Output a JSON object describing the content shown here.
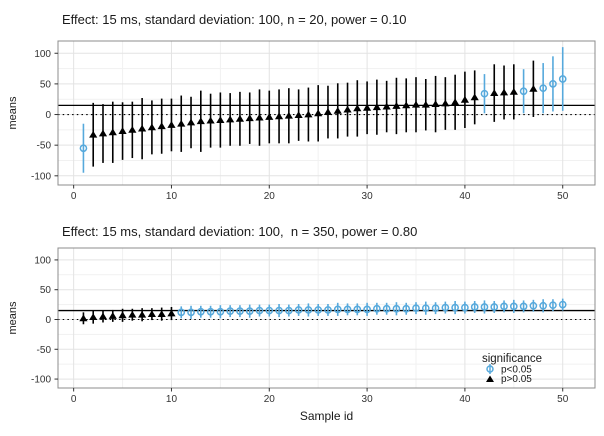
{
  "colors": {
    "significant": "#56A9DC",
    "nonsignificant": "#000000",
    "grid_major": "#e3e3e3",
    "grid_minor": "#f1f1f1",
    "panel_border": "#8c8c8c",
    "tick_text": "#333333",
    "title_text": "#1a1a1a",
    "reference_line": "#000000"
  },
  "x_axis_label": "Sample id",
  "legend": {
    "title": "significance",
    "items": [
      {
        "label": "p<0.05",
        "marker": "circle-errorbar-icon",
        "color": "#56A9DC"
      },
      {
        "label": "p>0.05",
        "marker": "triangle-icon",
        "color": "#000000"
      }
    ]
  },
  "chart_data": [
    {
      "type": "scatter",
      "subtype": "means-with-95CI-errorbars-sorted-ascending",
      "title": "Effect: 15 ms, standard deviation: 100, n = 20, power = 0.10",
      "xlabel": "",
      "ylabel": "means",
      "xlim": [
        -1.6,
        53.3
      ],
      "ylim": [
        -115,
        120
      ],
      "x_ticks": [
        0,
        10,
        20,
        30,
        40,
        50
      ],
      "y_ticks": [
        -100,
        -50,
        0,
        50,
        100
      ],
      "grid": true,
      "reference_lines": [
        {
          "y": 15,
          "style": "solid",
          "meaning": "true effect"
        },
        {
          "y": 0,
          "style": "dotted",
          "meaning": "null"
        }
      ],
      "point_format": [
        "sample_id",
        "mean",
        "ci_low",
        "ci_high",
        "significant"
      ],
      "points": [
        [
          1,
          -55,
          -95,
          -15,
          1
        ],
        [
          2,
          -33,
          -85,
          19,
          0
        ],
        [
          3,
          -31,
          -79,
          17,
          0
        ],
        [
          4,
          -29,
          -79,
          21,
          0
        ],
        [
          5,
          -27,
          -74,
          20,
          0
        ],
        [
          6,
          -25,
          -71,
          21,
          0
        ],
        [
          7,
          -23,
          -73,
          27,
          0
        ],
        [
          8,
          -21,
          -65,
          23,
          0
        ],
        [
          9,
          -19,
          -64,
          26,
          0
        ],
        [
          10,
          -17,
          -60,
          26,
          0
        ],
        [
          11,
          -15,
          -61,
          31,
          0
        ],
        [
          12,
          -13,
          -55,
          29,
          0
        ],
        [
          13,
          -11,
          -61,
          39,
          0
        ],
        [
          14,
          -10,
          -54,
          34,
          0
        ],
        [
          15,
          -9,
          -54,
          36,
          0
        ],
        [
          16,
          -8,
          -51,
          35,
          0
        ],
        [
          17,
          -7,
          -51,
          37,
          0
        ],
        [
          18,
          -6,
          -48,
          36,
          0
        ],
        [
          19,
          -5,
          -51,
          41,
          0
        ],
        [
          20,
          -4,
          -47,
          39,
          0
        ],
        [
          21,
          -3,
          -47,
          41,
          0
        ],
        [
          22,
          -2,
          -47,
          43,
          0
        ],
        [
          23,
          -1,
          -43,
          41,
          0
        ],
        [
          24,
          0,
          -44,
          44,
          0
        ],
        [
          25,
          2,
          -44,
          48,
          0
        ],
        [
          26,
          4,
          -39,
          47,
          0
        ],
        [
          27,
          6,
          -39,
          51,
          0
        ],
        [
          28,
          8,
          -36,
          52,
          0
        ],
        [
          29,
          10,
          -36,
          56,
          0
        ],
        [
          30,
          11,
          -32,
          54,
          0
        ],
        [
          31,
          12,
          -33,
          57,
          0
        ],
        [
          32,
          13,
          -29,
          55,
          0
        ],
        [
          33,
          14,
          -32,
          60,
          0
        ],
        [
          34,
          15,
          -29,
          59,
          0
        ],
        [
          35,
          16,
          -29,
          61,
          0
        ],
        [
          36,
          16,
          -26,
          58,
          0
        ],
        [
          37,
          17,
          -29,
          63,
          0
        ],
        [
          38,
          18,
          -25,
          61,
          0
        ],
        [
          39,
          20,
          -25,
          65,
          0
        ],
        [
          40,
          24,
          -22,
          70,
          0
        ],
        [
          41,
          28,
          -16,
          72,
          0
        ],
        [
          42,
          34,
          2,
          66,
          1
        ],
        [
          43,
          35,
          -12,
          82,
          0
        ],
        [
          44,
          36,
          -8,
          80,
          0
        ],
        [
          45,
          37,
          -8,
          82,
          0
        ],
        [
          46,
          38,
          2,
          74,
          1
        ],
        [
          47,
          42,
          -4,
          88,
          0
        ],
        [
          48,
          43,
          2,
          84,
          1
        ],
        [
          49,
          50,
          5,
          95,
          1
        ],
        [
          50,
          58,
          6,
          110,
          1
        ]
      ]
    },
    {
      "type": "scatter",
      "subtype": "means-with-95CI-errorbars-sorted-ascending",
      "title": "Effect: 15 ms, standard deviation: 100,  n = 350, power = 0.80",
      "xlabel": "Sample id",
      "ylabel": "means",
      "xlim": [
        -1.6,
        53.3
      ],
      "ylim": [
        -115,
        120
      ],
      "x_ticks": [
        0,
        10,
        20,
        30,
        40,
        50
      ],
      "y_ticks": [
        -100,
        -50,
        0,
        50,
        100
      ],
      "grid": true,
      "legend_position": "inside-bottom-right",
      "reference_lines": [
        {
          "y": 15,
          "style": "solid",
          "meaning": "true effect"
        },
        {
          "y": 0,
          "style": "dotted",
          "meaning": "null"
        }
      ],
      "point_format": [
        "sample_id",
        "mean",
        "ci_low",
        "ci_high",
        "significant"
      ],
      "points": [
        [
          1,
          2,
          -8,
          12,
          0
        ],
        [
          2,
          4,
          -7,
          15,
          0
        ],
        [
          3,
          5,
          -5,
          15,
          0
        ],
        [
          4,
          6,
          -4,
          16,
          0
        ],
        [
          5,
          7,
          -4,
          18,
          0
        ],
        [
          6,
          8,
          -2,
          18,
          0
        ],
        [
          7,
          8,
          -3,
          19,
          0
        ],
        [
          8,
          9,
          -1,
          19,
          0
        ],
        [
          9,
          9,
          -2,
          20,
          0
        ],
        [
          10,
          10,
          -1,
          21,
          0
        ],
        [
          11,
          12,
          2,
          22,
          1
        ],
        [
          12,
          12,
          1,
          23,
          1
        ],
        [
          13,
          13,
          3,
          23,
          1
        ],
        [
          14,
          13,
          3,
          23,
          1
        ],
        [
          15,
          13,
          2,
          24,
          1
        ],
        [
          16,
          14,
          4,
          24,
          1
        ],
        [
          17,
          14,
          4,
          24,
          1
        ],
        [
          18,
          14,
          3,
          25,
          1
        ],
        [
          19,
          15,
          5,
          25,
          1
        ],
        [
          20,
          15,
          5,
          25,
          1
        ],
        [
          21,
          15,
          4,
          26,
          1
        ],
        [
          22,
          15,
          5,
          25,
          1
        ],
        [
          23,
          16,
          6,
          26,
          1
        ],
        [
          24,
          16,
          5,
          27,
          1
        ],
        [
          25,
          16,
          6,
          26,
          1
        ],
        [
          26,
          16,
          6,
          26,
          1
        ],
        [
          27,
          17,
          6,
          28,
          1
        ],
        [
          28,
          17,
          7,
          27,
          1
        ],
        [
          29,
          17,
          7,
          27,
          1
        ],
        [
          30,
          17,
          6,
          28,
          1
        ],
        [
          31,
          18,
          8,
          28,
          1
        ],
        [
          32,
          18,
          8,
          28,
          1
        ],
        [
          33,
          18,
          7,
          29,
          1
        ],
        [
          34,
          18,
          8,
          28,
          1
        ],
        [
          35,
          19,
          9,
          29,
          1
        ],
        [
          36,
          19,
          8,
          30,
          1
        ],
        [
          37,
          19,
          9,
          29,
          1
        ],
        [
          38,
          20,
          10,
          30,
          1
        ],
        [
          39,
          20,
          9,
          31,
          1
        ],
        [
          40,
          20,
          10,
          30,
          1
        ],
        [
          41,
          21,
          11,
          31,
          1
        ],
        [
          42,
          21,
          10,
          32,
          1
        ],
        [
          43,
          21,
          11,
          31,
          1
        ],
        [
          44,
          22,
          12,
          32,
          1
        ],
        [
          45,
          22,
          11,
          33,
          1
        ],
        [
          46,
          22,
          12,
          32,
          1
        ],
        [
          47,
          23,
          13,
          33,
          1
        ],
        [
          48,
          23,
          12,
          34,
          1
        ],
        [
          49,
          24,
          14,
          34,
          1
        ],
        [
          50,
          25,
          15,
          35,
          1
        ]
      ]
    }
  ]
}
